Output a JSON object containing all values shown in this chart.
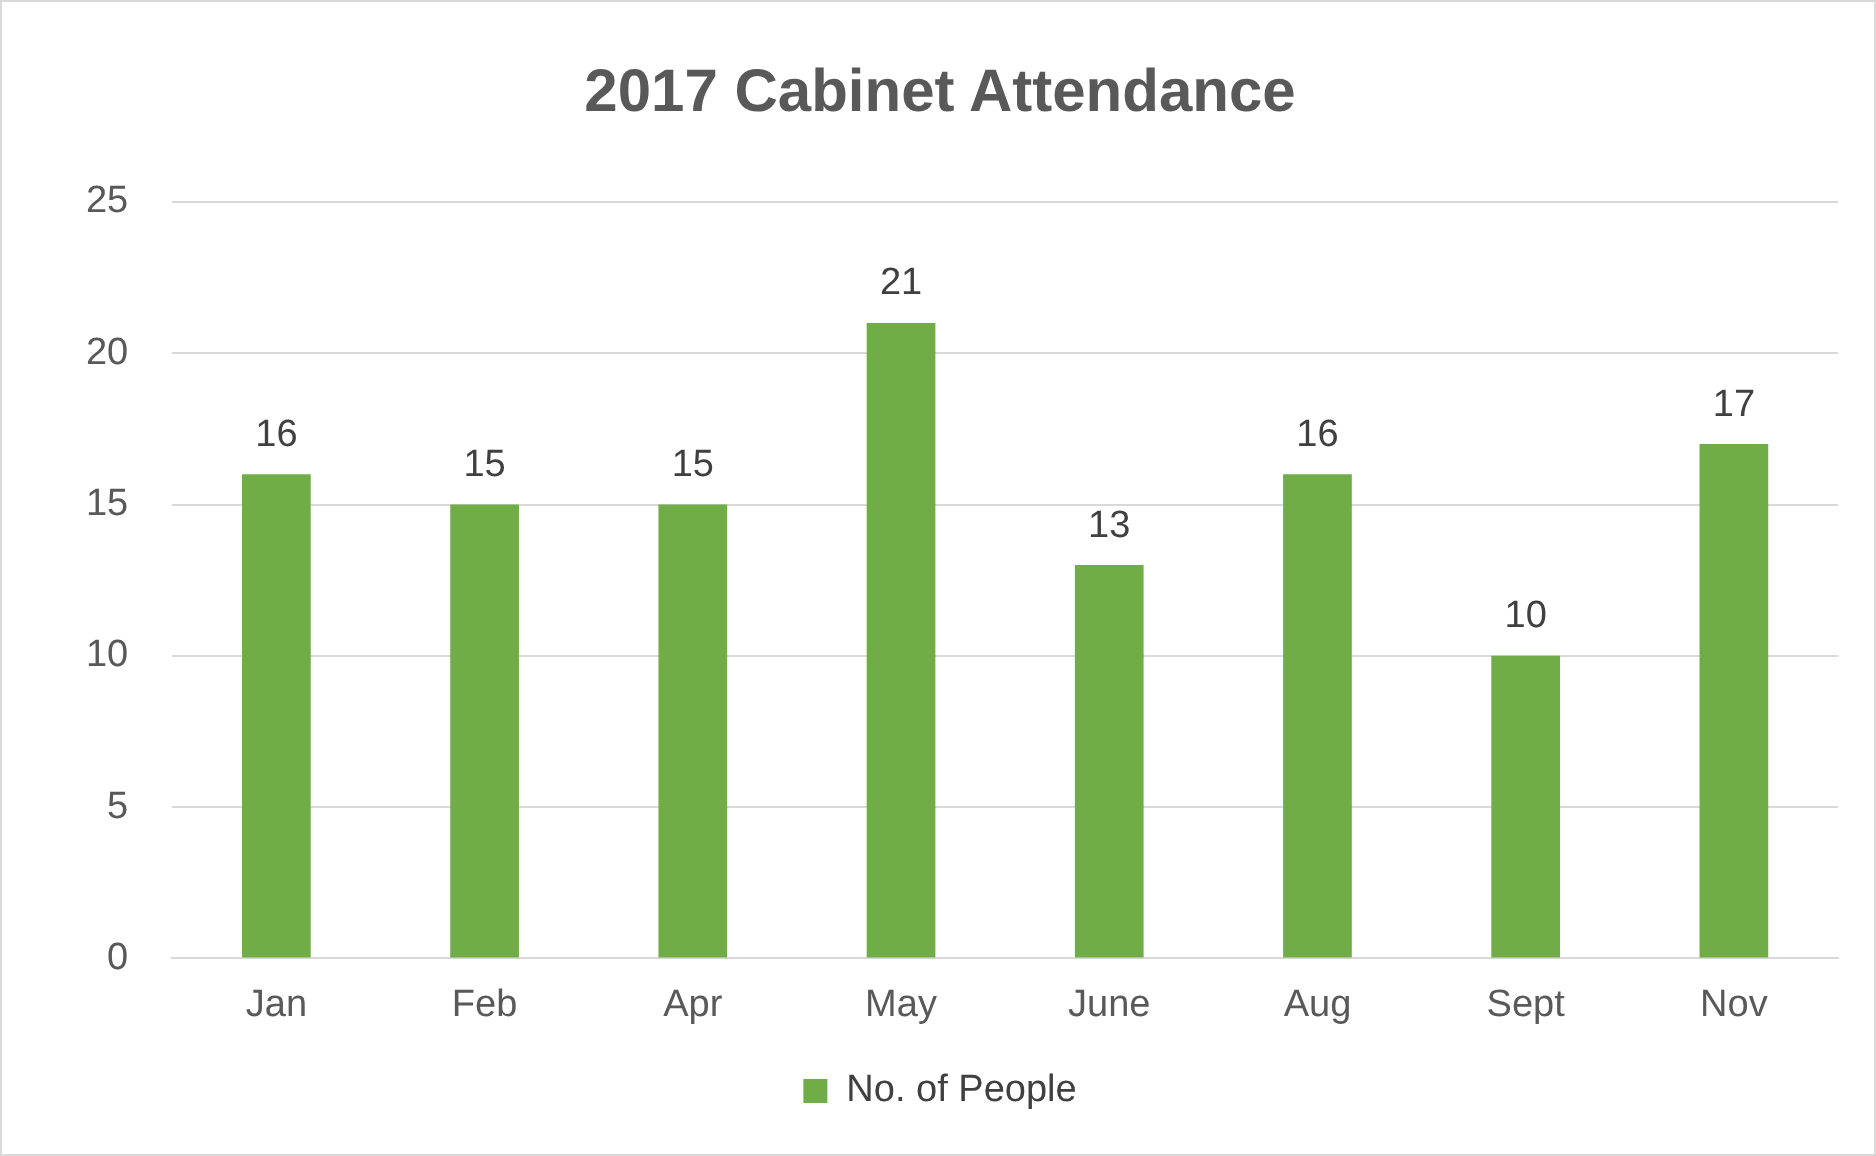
{
  "chart_data": {
    "type": "bar",
    "title": "2017 Cabinet Attendance",
    "categories": [
      "Jan",
      "Feb",
      "Apr",
      "May",
      "June",
      "Aug",
      "Sept",
      "Nov"
    ],
    "series": [
      {
        "name": "No. of People",
        "color": "#70ad47",
        "values": [
          16,
          15,
          15,
          21,
          13,
          16,
          10,
          17
        ]
      }
    ],
    "ylim": [
      0,
      25
    ],
    "yticks": [
      0,
      5,
      10,
      15,
      20,
      25
    ],
    "grid": "y",
    "legend": "bottom",
    "data_labels": true
  }
}
